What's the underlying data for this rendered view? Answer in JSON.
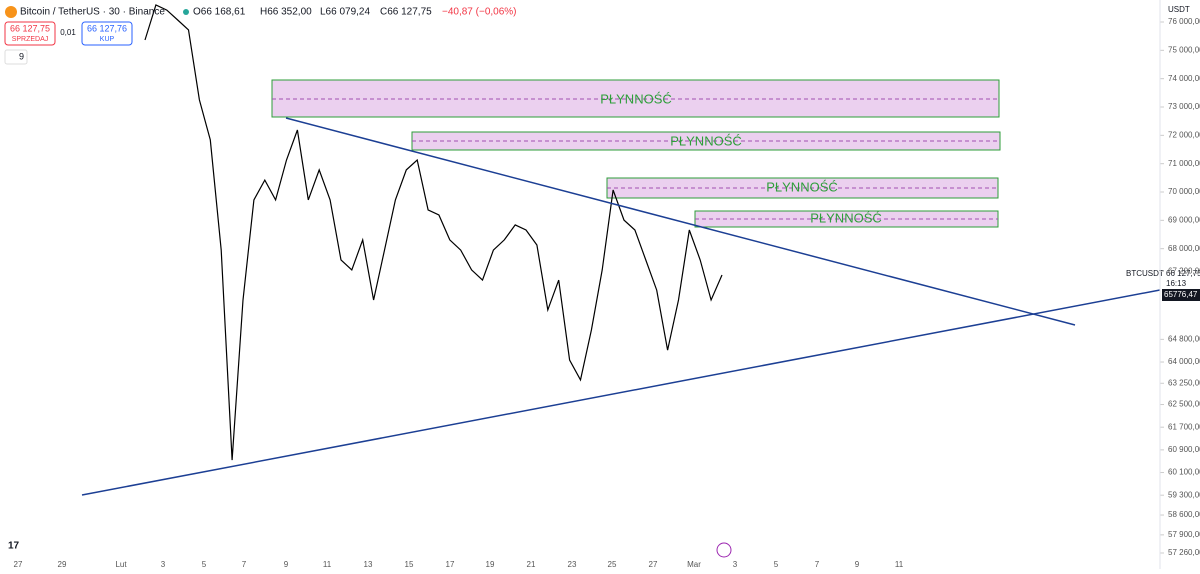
{
  "header": {
    "symbol": "Bitcoin / TetherUS · 30 · Binance",
    "open": "O66 168,61",
    "high": "H66 352,00",
    "low": "L66 079,24",
    "close": "C66 127,75",
    "change": "−40,87 (−0,06%)"
  },
  "trade": {
    "sell_price": "66 127,75",
    "sell_label": "SPRZEDAJ",
    "spread": "0,01",
    "buy_price": "66 127,76",
    "buy_label": "KUP",
    "indicators": "9"
  },
  "zones": [
    "PŁYNNOŚĆ",
    "PŁYNNOŚĆ",
    "PŁYNNOŚĆ",
    "PŁYNNOŚĆ"
  ],
  "price_scale": {
    "currency": "USDT",
    "ticker": "BTCUSDT",
    "last": "66 127,75",
    "countdown": "16:13",
    "marker": "65776,47"
  },
  "chart": {
    "ylim": [
      57260,
      76000
    ],
    "yticks": [
      {
        "value": 76000,
        "label": "76 000,00"
      },
      {
        "value": 75000,
        "label": "75 000,00"
      },
      {
        "value": 74000,
        "label": "74 000,00"
      },
      {
        "value": 73000,
        "label": "73 000,00"
      },
      {
        "value": 72000,
        "label": "72 000,00"
      },
      {
        "value": 71000,
        "label": "71 000,00"
      },
      {
        "value": 70000,
        "label": "70 000,00"
      },
      {
        "value": 69000,
        "label": "69 000,00"
      },
      {
        "value": 68000,
        "label": "68 000,00"
      },
      {
        "value": 67200,
        "label": "67 200,00"
      },
      {
        "value": 64800,
        "label": "64 800,00"
      },
      {
        "value": 64000,
        "label": "64 000,00"
      },
      {
        "value": 63250,
        "label": "63 250,00"
      },
      {
        "value": 62500,
        "label": "62 500,00"
      },
      {
        "value": 61700,
        "label": "61 700,00"
      },
      {
        "value": 60900,
        "label": "60 900,00"
      },
      {
        "value": 60100,
        "label": "60 100,00"
      },
      {
        "value": 59300,
        "label": "59 300,00"
      },
      {
        "value": 58600,
        "label": "58 600,00"
      },
      {
        "value": 57900,
        "label": "57 900,00"
      },
      {
        "value": 57260,
        "label": "57 260,00"
      }
    ],
    "x_labels": [
      "27",
      "29",
      "Lut",
      "3",
      "5",
      "7",
      "9",
      "11",
      "13",
      "15",
      "17",
      "19",
      "21",
      "23",
      "25",
      "27",
      "Mar",
      "3",
      "5",
      "7",
      "9",
      "11"
    ],
    "price": [
      75365,
      76600,
      76420,
      76070,
      75720,
      73250,
      71840,
      67950,
      60540,
      66190,
      69720,
      70420,
      69720,
      71130,
      72190,
      69720,
      70780,
      69720,
      67600,
      67250,
      68310,
      66190,
      67950,
      69720,
      70780,
      71130,
      69370,
      69190,
      68310,
      67950,
      67250,
      66890,
      67950,
      68310,
      68840,
      68660,
      68130,
      65840,
      66890,
      64070,
      63370,
      65130,
      67250,
      70070,
      69010,
      68660,
      67600,
      66540,
      64420,
      66190,
      68660,
      67600,
      66190,
      67070
    ]
  }
}
